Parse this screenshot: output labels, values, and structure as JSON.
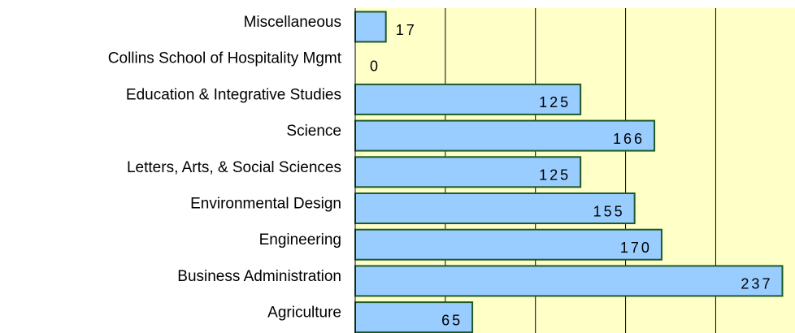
{
  "chart_data": {
    "type": "barh",
    "categories": [
      "Miscellaneous",
      "Collins School of Hospitality Mgmt",
      "Education & Integrative Studies",
      "Science",
      "Letters, Arts, & Social Sciences",
      "Environmental Design",
      "Engineering",
      "Business Administration",
      "Agriculture"
    ],
    "values": [
      17,
      0,
      125,
      166,
      125,
      155,
      170,
      237,
      65
    ],
    "color": "#99ccff",
    "edge_color": "#1e5a28",
    "background": "#ffffc8",
    "xlim": [
      0,
      244
    ],
    "xticks": [
      0,
      50,
      100,
      150,
      200
    ],
    "grid": true
  }
}
